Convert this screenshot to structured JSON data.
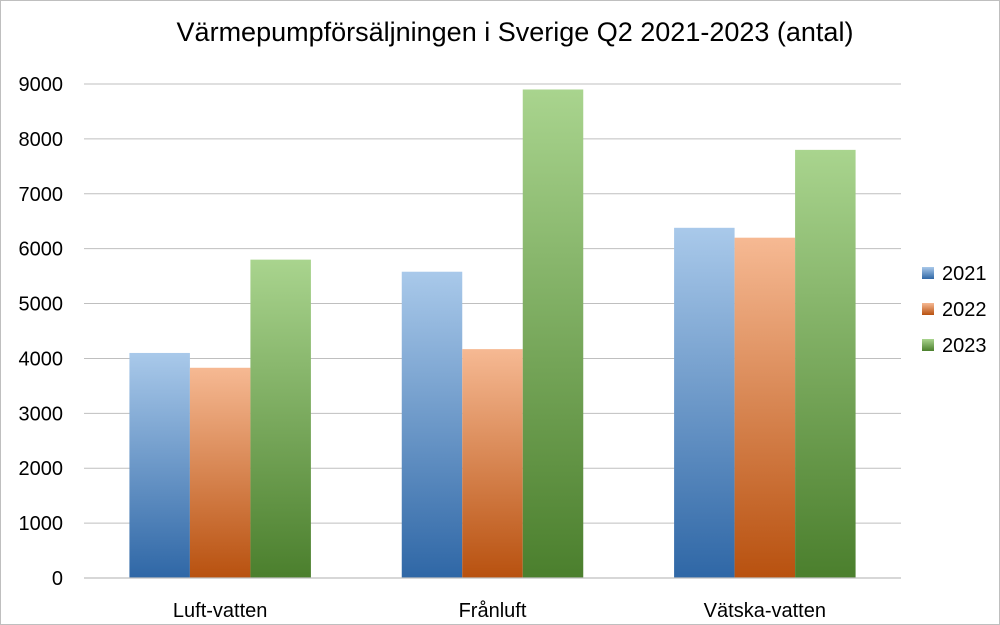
{
  "chart_data": {
    "type": "bar",
    "title": "Värmepumpförsäljningen i Sverige Q2 2021-2023 (antal)",
    "xlabel": "",
    "ylabel": "",
    "categories": [
      "Luft-vatten",
      "Frånluft",
      "Vätska-vatten"
    ],
    "series": [
      {
        "name": "2021",
        "values": [
          4100,
          5580,
          6380
        ],
        "color_light": "#a9c9ea",
        "color_dark": "#2f67a6"
      },
      {
        "name": "2022",
        "values": [
          3830,
          4170,
          6200
        ],
        "color_light": "#f6b993",
        "color_dark": "#b8510f"
      },
      {
        "name": "2023",
        "values": [
          5800,
          8900,
          7800
        ],
        "color_light": "#a9d48e",
        "color_dark": "#4b7f2d"
      }
    ],
    "ylim": [
      0,
      9000
    ],
    "y_ticks": [
      "0",
      "1000",
      "2000",
      "3000",
      "4000",
      "5000",
      "6000",
      "7000",
      "8000",
      "9000"
    ],
    "grid": true,
    "legend_position": "right"
  }
}
